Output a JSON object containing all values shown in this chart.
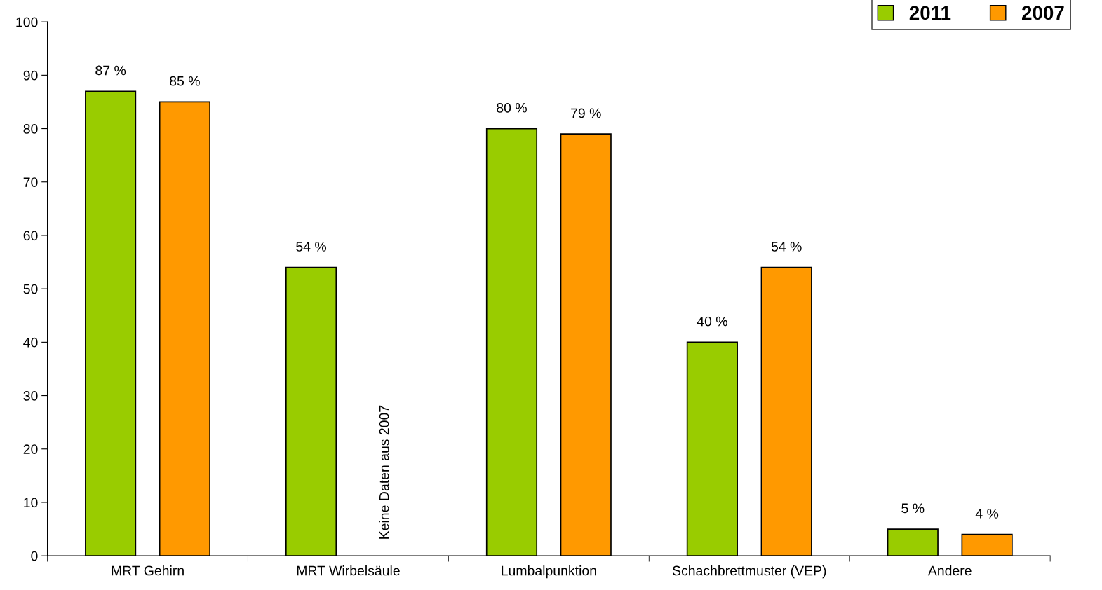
{
  "chart_data": {
    "type": "bar",
    "categories": [
      "MRT Gehirn",
      "MRT Wirbelsäule",
      "Lumbalpunktion",
      "Schachbrettmuster (VEP)",
      "Andere"
    ],
    "series": [
      {
        "name": "2011",
        "color": "#99cc00",
        "values": [
          87,
          54,
          80,
          40,
          5
        ],
        "value_labels": [
          "87 %",
          "54 %",
          "80 %",
          "40 %",
          "5 %"
        ]
      },
      {
        "name": "2007",
        "color": "#ff9900",
        "values": [
          85,
          null,
          79,
          54,
          4
        ],
        "value_labels": [
          "85 %",
          null,
          "79 %",
          "54 %",
          "4 %"
        ]
      }
    ],
    "ylim": [
      0,
      100
    ],
    "yticks": [
      0,
      10,
      20,
      30,
      40,
      50,
      60,
      70,
      80,
      90,
      100
    ],
    "grid": false,
    "legend": "top right",
    "annotations": [
      "Keine Daten aus 2007"
    ]
  }
}
